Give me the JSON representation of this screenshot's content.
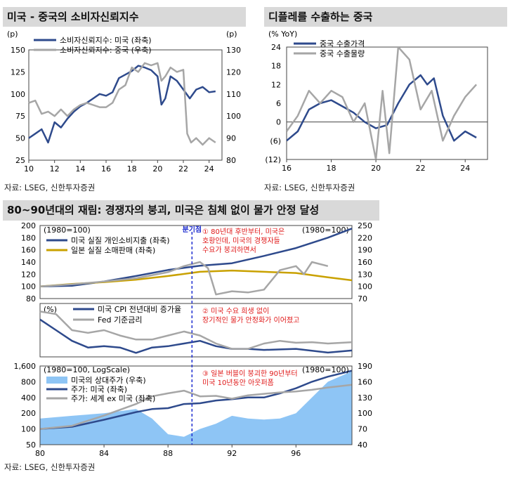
{
  "panels": {
    "us_cn_confidence": {
      "title": "미국 - 중국의 소비자신뢰지수",
      "source": "자료: LSEG, 신한투자증권"
    },
    "deflation_export": {
      "title": "디플레를 수출하는 중국",
      "source": "자료: LSEG, 신한투자증권"
    },
    "japan_80s": {
      "title": "80~90년대의 재림: 경쟁자의 붕괴, 미국은 침체 없이 물가 안정 달성",
      "source": "자료: LSEG, 신한투자증권",
      "breakpoint_label": "분기점",
      "annotations": [
        "① 80년대 후반부터, 미국은\n호황인데, 미국의 경쟁자들\n수요가 붕괴하면서",
        "② 미국 수요 희생 없이\n장기적인 물가 안정화가 이어졌고",
        "③ 일본 버블이 붕괴한 90년부터\n미국 10년동안 아웃퍼폼"
      ]
    }
  },
  "chart_data": [
    {
      "type": "line",
      "title": "미국 - 중국의 소비자신뢰지수",
      "left_unit": "(p)",
      "right_unit": "(p)",
      "x_ticks": [
        "10",
        "12",
        "14",
        "16",
        "18",
        "20",
        "22",
        "24"
      ],
      "xlim": [
        2010,
        2025
      ],
      "ylim_left": [
        25,
        150
      ],
      "ylim_right": [
        80,
        130
      ],
      "y_ticks_left": [
        25,
        50,
        75,
        100,
        125,
        150
      ],
      "y_ticks_right": [
        80,
        90,
        100,
        110,
        120,
        130
      ],
      "grid": false,
      "legend": "top-left",
      "series": [
        {
          "name": "소비자신뢰지수: 미국 (좌축)",
          "axis": "left",
          "color": "#2e4a8c",
          "x": [
            2010,
            2010.5,
            2011,
            2011.5,
            2012,
            2012.5,
            2013,
            2013.5,
            2014,
            2014.5,
            2015,
            2015.5,
            2016,
            2016.5,
            2017,
            2017.5,
            2018,
            2018.5,
            2019,
            2019.5,
            2020,
            2020.3,
            2020.6,
            2021,
            2021.5,
            2022,
            2022.5,
            2023,
            2023.5,
            2024,
            2024.5
          ],
          "y": [
            50,
            55,
            60,
            45,
            68,
            62,
            72,
            80,
            86,
            90,
            95,
            100,
            98,
            102,
            118,
            122,
            126,
            132,
            130,
            127,
            120,
            88,
            95,
            120,
            115,
            105,
            95,
            105,
            108,
            102,
            103
          ]
        },
        {
          "name": "소비자신뢰지수: 중국 (우축)",
          "axis": "right",
          "color": "#a6a6a6",
          "x": [
            2010,
            2010.5,
            2011,
            2011.5,
            2012,
            2012.5,
            2013,
            2013.5,
            2014,
            2014.5,
            2015,
            2015.5,
            2016,
            2016.5,
            2017,
            2017.5,
            2018,
            2018.5,
            2019,
            2019.5,
            2020,
            2020.3,
            2020.6,
            2021,
            2021.5,
            2022,
            2022.3,
            2022.6,
            2023,
            2023.5,
            2024,
            2024.5
          ],
          "y": [
            106,
            107,
            101,
            102,
            100,
            103,
            100,
            103,
            105,
            106,
            105,
            104,
            104,
            106,
            112,
            114,
            122,
            120,
            124,
            123,
            124,
            116,
            118,
            122,
            120,
            121,
            92,
            88,
            90,
            87,
            90,
            88
          ]
        }
      ]
    },
    {
      "type": "line",
      "title": "디플레를 수출하는 중국",
      "y_unit": "(% YoY)",
      "x_ticks": [
        "16",
        "18",
        "20",
        "22",
        "24"
      ],
      "xlim": [
        2016,
        2025
      ],
      "ylim": [
        -12,
        24
      ],
      "y_ticks": [
        -12,
        -6,
        0,
        6,
        12,
        18,
        24
      ],
      "y_tick_labels": [
        "(12)",
        "(6)",
        "0",
        "6",
        "12",
        "18",
        "24"
      ],
      "grid": false,
      "legend": "top-left",
      "series": [
        {
          "name": "중국 수출가격",
          "color": "#2e4a8c",
          "x": [
            2016,
            2016.5,
            2017,
            2017.5,
            2018,
            2018.5,
            2019,
            2019.5,
            2020,
            2020.5,
            2021,
            2021.5,
            2022,
            2022.3,
            2022.6,
            2023,
            2023.5,
            2024,
            2024.5
          ],
          "y": [
            -6,
            -3,
            4,
            6,
            7,
            5,
            3,
            0,
            -2,
            -1,
            6,
            12,
            15,
            12,
            14,
            2,
            -6,
            -3,
            -5
          ]
        },
        {
          "name": "중국 수출물량",
          "color": "#a6a6a6",
          "x": [
            2016,
            2016.5,
            2017,
            2017.5,
            2018,
            2018.5,
            2019,
            2019.5,
            2020,
            2020.3,
            2020.6,
            2021,
            2021.5,
            2022,
            2022.5,
            2023,
            2023.5,
            2024,
            2024.5
          ],
          "y": [
            -3,
            2,
            10,
            6,
            10,
            8,
            0,
            6,
            -12,
            10,
            -10,
            24,
            20,
            4,
            10,
            -6,
            2,
            8,
            12
          ]
        }
      ]
    },
    {
      "type": "line",
      "subpanel": "consumption",
      "note": "(1980=100)",
      "note_right": "(1980=100)",
      "xlim": [
        1980,
        1999.5
      ],
      "ylim_left": [
        80,
        200
      ],
      "ylim_right": [
        70,
        250
      ],
      "y_ticks_left": [
        80,
        100,
        120,
        140,
        160,
        180,
        200
      ],
      "y_ticks_right": [
        70,
        100,
        130,
        160,
        190,
        220,
        250
      ],
      "breakpoint_x": 1989.5,
      "series": [
        {
          "name": "미국 실질 개인소비지출 (좌축)",
          "axis": "left",
          "color": "#2e4a8c",
          "x": [
            1980,
            1982,
            1984,
            1986,
            1988,
            1990,
            1992,
            1994,
            1996,
            1998,
            1999.5
          ],
          "y": [
            100,
            101,
            108,
            117,
            127,
            134,
            138,
            150,
            163,
            180,
            195
          ]
        },
        {
          "name": "일본 실질 소매판매 (좌축)",
          "axis": "left",
          "color": "#c9a100",
          "x": [
            1980,
            1982,
            1984,
            1986,
            1988,
            1990,
            1992,
            1994,
            1996,
            1998,
            1999.5
          ],
          "y": [
            100,
            104,
            107,
            111,
            117,
            124,
            126,
            124,
            122,
            115,
            110
          ]
        },
        {
          "name": "",
          "axis": "right",
          "color": "#a6a6a6",
          "x": [
            1980,
            1982,
            1984,
            1986,
            1988,
            1989,
            1990,
            1990.5,
            1991,
            1992,
            1993,
            1994,
            1995,
            1996,
            1996.5,
            1997,
            1998
          ],
          "y": [
            100,
            105,
            112,
            120,
            135,
            150,
            160,
            145,
            80,
            88,
            85,
            92,
            140,
            150,
            130,
            160,
            150
          ]
        }
      ]
    },
    {
      "type": "line",
      "subpanel": "inflation",
      "y_unit": "(%)",
      "xlim": [
        1980,
        1999.5
      ],
      "ylim": [
        0,
        20
      ],
      "series": [
        {
          "name": "미국 CPI 전년대비 증가율",
          "color": "#2e4a8c",
          "x": [
            1980,
            1981,
            1982,
            1983,
            1984,
            1985,
            1986,
            1987,
            1988,
            1989,
            1990,
            1991,
            1992,
            1993,
            1994,
            1995,
            1996,
            1997,
            1998,
            1999.5
          ],
          "y": [
            14,
            10,
            6,
            3.5,
            4,
            3.5,
            1.5,
            3.5,
            4,
            5,
            6,
            4,
            3,
            3,
            2.6,
            2.8,
            3,
            2.3,
            1.6,
            2.4
          ]
        },
        {
          "name": "Fed 기준금리",
          "color": "#a6a6a6",
          "x": [
            1980,
            1981,
            1982,
            1983,
            1984,
            1985,
            1986,
            1987,
            1988,
            1989,
            1990,
            1991,
            1992,
            1993,
            1994,
            1995,
            1996,
            1997,
            1998,
            1999.5
          ],
          "y": [
            17,
            16,
            10,
            9,
            10,
            8,
            6.5,
            6.5,
            8,
            9.5,
            8,
            5,
            3,
            3,
            5,
            6,
            5.3,
            5.5,
            5,
            5.5
          ]
        }
      ]
    },
    {
      "type": "area",
      "subpanel": "stocks",
      "note": "(1980=100, LogScale)",
      "note_right": "(1980=100)",
      "x_ticks": [
        "80",
        "84",
        "88",
        "92",
        "96"
      ],
      "xlim": [
        1980,
        1999.5
      ],
      "ylim_left": [
        50,
        1600
      ],
      "ylim_right": [
        40,
        190
      ],
      "y_ticks_left": [
        50,
        100,
        200,
        400,
        800,
        1600
      ],
      "y_tick_labels_left": [
        "50",
        "100",
        "200",
        "400",
        "800",
        "1,600"
      ],
      "y_ticks_right": [
        40,
        70,
        100,
        130,
        160,
        190
      ],
      "series": [
        {
          "name": "미국의 상대주가 (우축)",
          "axis": "right",
          "color": "#8ec5f5",
          "x": [
            1980,
            1982,
            1984,
            1986,
            1987,
            1988,
            1989,
            1990,
            1991,
            1992,
            1993,
            1994,
            1995,
            1996,
            1997,
            1998,
            1999.5
          ],
          "y": [
            90,
            95,
            100,
            108,
            90,
            60,
            55,
            70,
            80,
            95,
            90,
            88,
            90,
            100,
            130,
            160,
            180
          ]
        },
        {
          "name": "주가: 미국 (좌축)",
          "axis": "left",
          "color": "#2e4a8c",
          "x": [
            1980,
            1982,
            1984,
            1986,
            1987,
            1988,
            1989,
            1990,
            1991,
            1992,
            1993,
            1994,
            1995,
            1996,
            1997,
            1998,
            1999.5
          ],
          "y": [
            100,
            110,
            150,
            210,
            240,
            250,
            300,
            310,
            350,
            370,
            400,
            400,
            480,
            600,
            800,
            1000,
            1300
          ]
        },
        {
          "name": "주가: 세계 ex 미국 (좌축)",
          "axis": "left",
          "color": "#a6a6a6",
          "x": [
            1980,
            1982,
            1984,
            1986,
            1987,
            1988,
            1989,
            1990,
            1991,
            1992,
            1993,
            1994,
            1995,
            1996,
            1997,
            1998,
            1999.5
          ],
          "y": [
            100,
            115,
            180,
            300,
            420,
            480,
            540,
            420,
            430,
            380,
            440,
            470,
            500,
            520,
            560,
            620,
            700
          ]
        }
      ]
    }
  ]
}
